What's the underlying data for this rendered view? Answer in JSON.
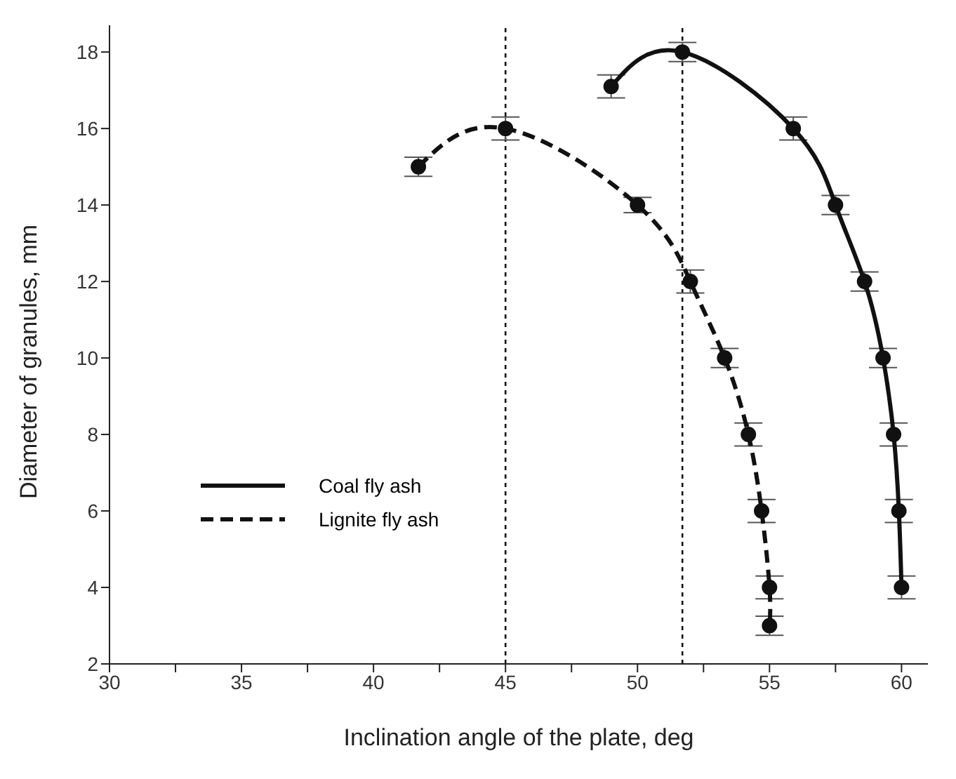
{
  "chart_data": {
    "type": "line",
    "xlabel": "Inclination angle of the plate, deg",
    "ylabel": "Diameter of granules, mm",
    "xlim": [
      30,
      61
    ],
    "xticks": [
      30,
      {
        "value": 32.5,
        "label": null
      },
      35,
      {
        "value": 37.5,
        "label": null
      },
      40,
      {
        "value": 42.5,
        "label": null
      },
      45,
      {
        "value": 47.5,
        "label": null
      },
      50,
      {
        "value": 52.5,
        "label": null
      },
      55,
      {
        "value": 57.5,
        "label": null
      },
      60
    ],
    "ylim": [
      2,
      18.7
    ],
    "yticks": [
      2,
      4,
      6,
      8,
      10,
      12,
      14,
      16,
      18
    ],
    "series": [
      {
        "name": "Coal fly ash",
        "color": "#111111",
        "line_style": "solid",
        "x": [
          49,
          51.7,
          55.9,
          57.5,
          58.6,
          59.3,
          59.7,
          59.9,
          60
        ],
        "values": [
          17.1,
          18,
          16,
          14,
          12,
          10,
          8,
          6,
          4
        ],
        "errors": [
          0.3,
          0.25,
          0.3,
          0.25,
          0.25,
          0.25,
          0.3,
          0.3,
          0.3
        ]
      },
      {
        "name": "Lignite fly ash",
        "color": "#111111",
        "line_style": "dashed",
        "x": [
          41.7,
          45,
          50,
          52,
          53.3,
          54.2,
          54.7,
          55,
          55
        ],
        "values": [
          15,
          16,
          14,
          12,
          10,
          8,
          6,
          4,
          3
        ],
        "errors": [
          0.25,
          0.3,
          0.2,
          0.3,
          0.25,
          0.3,
          0.3,
          0.3,
          0.25
        ]
      }
    ],
    "ref_lines": [
      {
        "axis": "x",
        "value": 45,
        "line_style": "dotted",
        "color": "#111111"
      },
      {
        "axis": "x",
        "value": 51.7,
        "line_style": "dotted",
        "color": "#111111"
      }
    ],
    "marker": "circle",
    "legend": "left",
    "grid": false
  }
}
